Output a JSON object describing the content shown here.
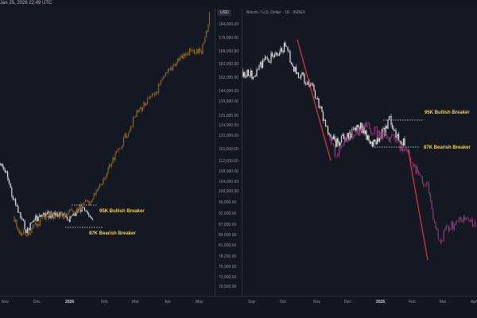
{
  "header": {
    "timestamp": "Jan 25, 2026 22:49 UTC"
  },
  "currency_badge": "USD",
  "symbol_info": "Bitcoin / U.S. Dollar · 1D · INDEX",
  "price_axis": [
    "184,000.00",
    "176,000.00",
    "168,000.00",
    "160,000.00",
    "152,000.00",
    "144,000.00",
    "139,000.00",
    "131,000.00",
    "124,000.00",
    "120,000.00",
    "116,000.00",
    "112,000.00",
    "108,000.00",
    "104,000.00",
    "100,000.00",
    "96,000.00",
    "92,000.00",
    "87,000.00",
    "84,000.00",
    "81,000.00",
    "78,200.00",
    "75,900.00",
    "73,000.00",
    "70,500.00"
  ],
  "left_x_axis": [
    {
      "label": "Nov",
      "bold": false
    },
    {
      "label": "Dec",
      "bold": false
    },
    {
      "label": "2026",
      "bold": true
    },
    {
      "label": "Feb",
      "bold": false
    },
    {
      "label": "Mar",
      "bold": false
    },
    {
      "label": "Apr",
      "bold": false
    },
    {
      "label": "May",
      "bold": false
    }
  ],
  "right_x_axis": [
    {
      "label": "Sep",
      "bold": false
    },
    {
      "label": "Oct",
      "bold": false
    },
    {
      "label": "Nov",
      "bold": false
    },
    {
      "label": "Dec",
      "bold": false
    },
    {
      "label": "2026",
      "bold": true
    },
    {
      "label": "Feb",
      "bold": false
    },
    {
      "label": "Mar",
      "bold": false
    },
    {
      "label": "Apr",
      "bold": false
    }
  ],
  "annotations": {
    "left_bullish": "95K Bullish Breaker",
    "left_bearish": "87K Bearish Breaker",
    "right_bullish": "95K Bullish Breaker",
    "right_bearish": "87K Bearish Breaker"
  },
  "colors": {
    "background": "#131722",
    "candle_white": "#e6e6e6",
    "projection_orange": "#8a6424",
    "projection_magenta": "#8e3c74",
    "trend_line_red": "#e5343f",
    "label_yellow": "#f0d54a"
  }
}
